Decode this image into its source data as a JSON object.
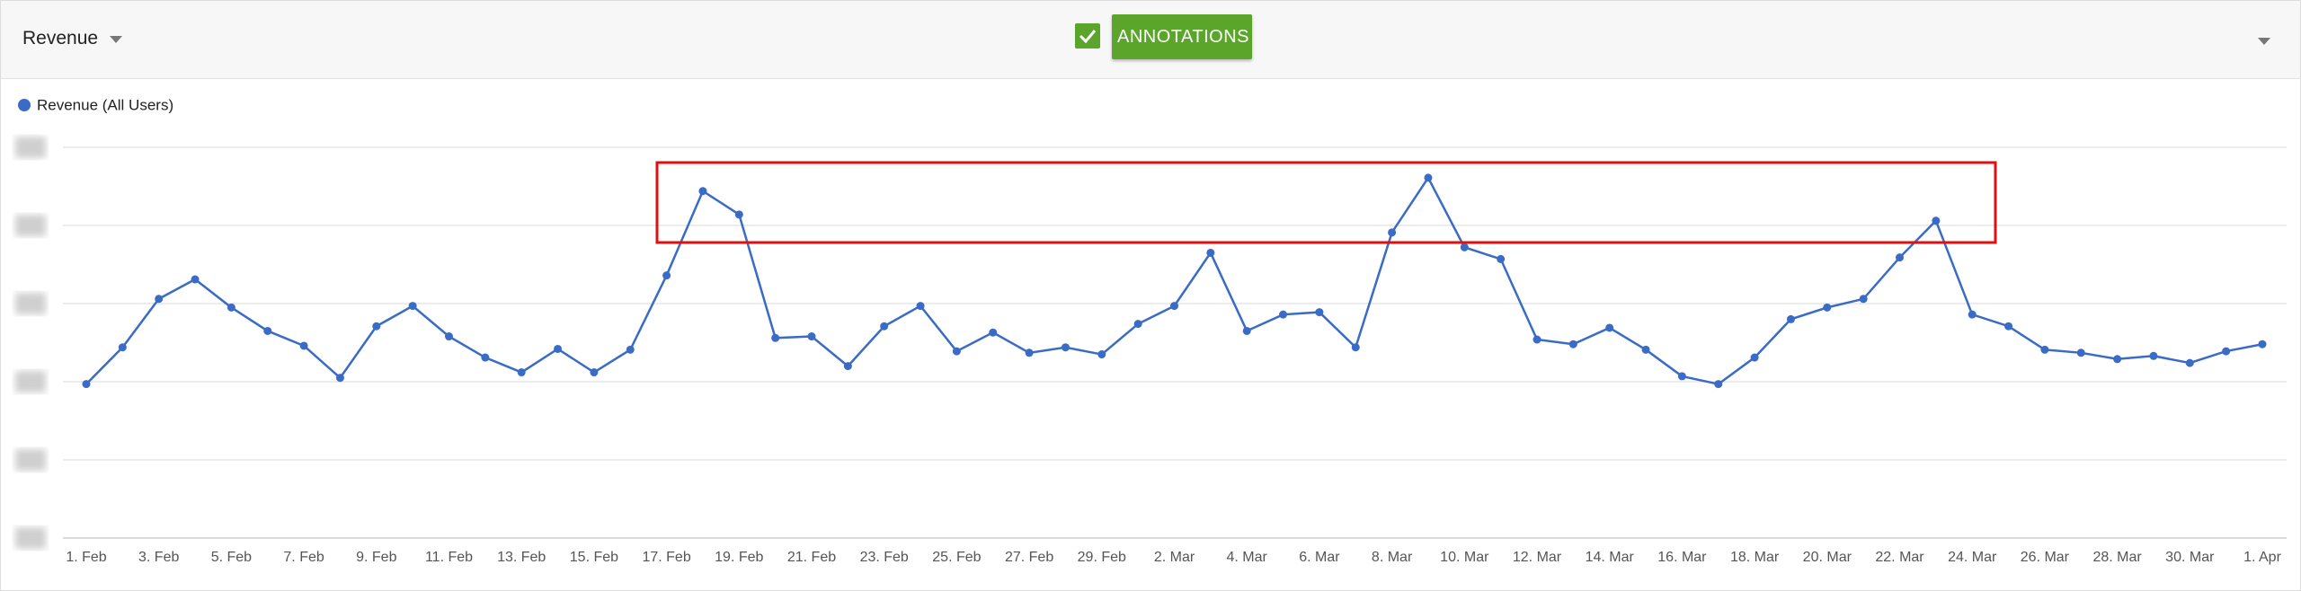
{
  "header": {
    "metric": "Revenue",
    "button": "ANNOTATIONS"
  },
  "chart_data": {
    "type": "line",
    "categories": [
      "1. Feb",
      null,
      "3. Feb",
      null,
      "5. Feb",
      null,
      "7. Feb",
      null,
      "9. Feb",
      null,
      "11. Feb",
      null,
      "13. Feb",
      null,
      "15. Feb",
      null,
      "17. Feb",
      null,
      "19. Feb",
      null,
      "21. Feb",
      null,
      "23. Feb",
      null,
      "25. Feb",
      null,
      "27. Feb",
      null,
      "29. Feb",
      null,
      "2. Mar",
      null,
      "4. Mar",
      null,
      "6. Mar",
      null,
      "8. Mar",
      null,
      "10. Mar",
      null,
      "12. Mar",
      null,
      "14. Mar",
      null,
      "16. Mar",
      null,
      "18. Mar",
      null,
      "20. Mar",
      null,
      "22. Mar",
      null,
      "24. Mar",
      null,
      "26. Mar",
      null,
      "28. Mar",
      null,
      "30. Mar",
      null,
      "1. Apr"
    ],
    "series": [
      {
        "name": "Revenue (All Users)",
        "color": "#3a6bc6",
        "values": [
          1.97,
          2.44,
          3.06,
          3.31,
          2.95,
          2.65,
          2.46,
          2.05,
          2.71,
          2.97,
          2.58,
          2.31,
          2.12,
          2.42,
          2.12,
          2.41,
          3.36,
          4.44,
          4.14,
          2.56,
          2.58,
          2.2,
          2.71,
          2.97,
          2.39,
          2.63,
          2.37,
          2.44,
          2.35,
          2.74,
          2.97,
          3.65,
          2.65,
          2.86,
          2.89,
          2.44,
          3.91,
          4.61,
          3.72,
          3.57,
          2.54,
          2.48,
          2.69,
          2.41,
          2.07,
          1.97,
          2.31,
          2.8,
          2.95,
          3.06,
          3.59,
          4.06,
          2.86,
          2.71,
          2.41,
          2.37,
          2.29,
          2.33,
          2.24,
          2.39,
          2.48
        ]
      }
    ],
    "ylim": [
      0,
      5
    ],
    "yticks": [
      0,
      1,
      2,
      3,
      4,
      5
    ],
    "grid": true,
    "legend": "top-left"
  }
}
